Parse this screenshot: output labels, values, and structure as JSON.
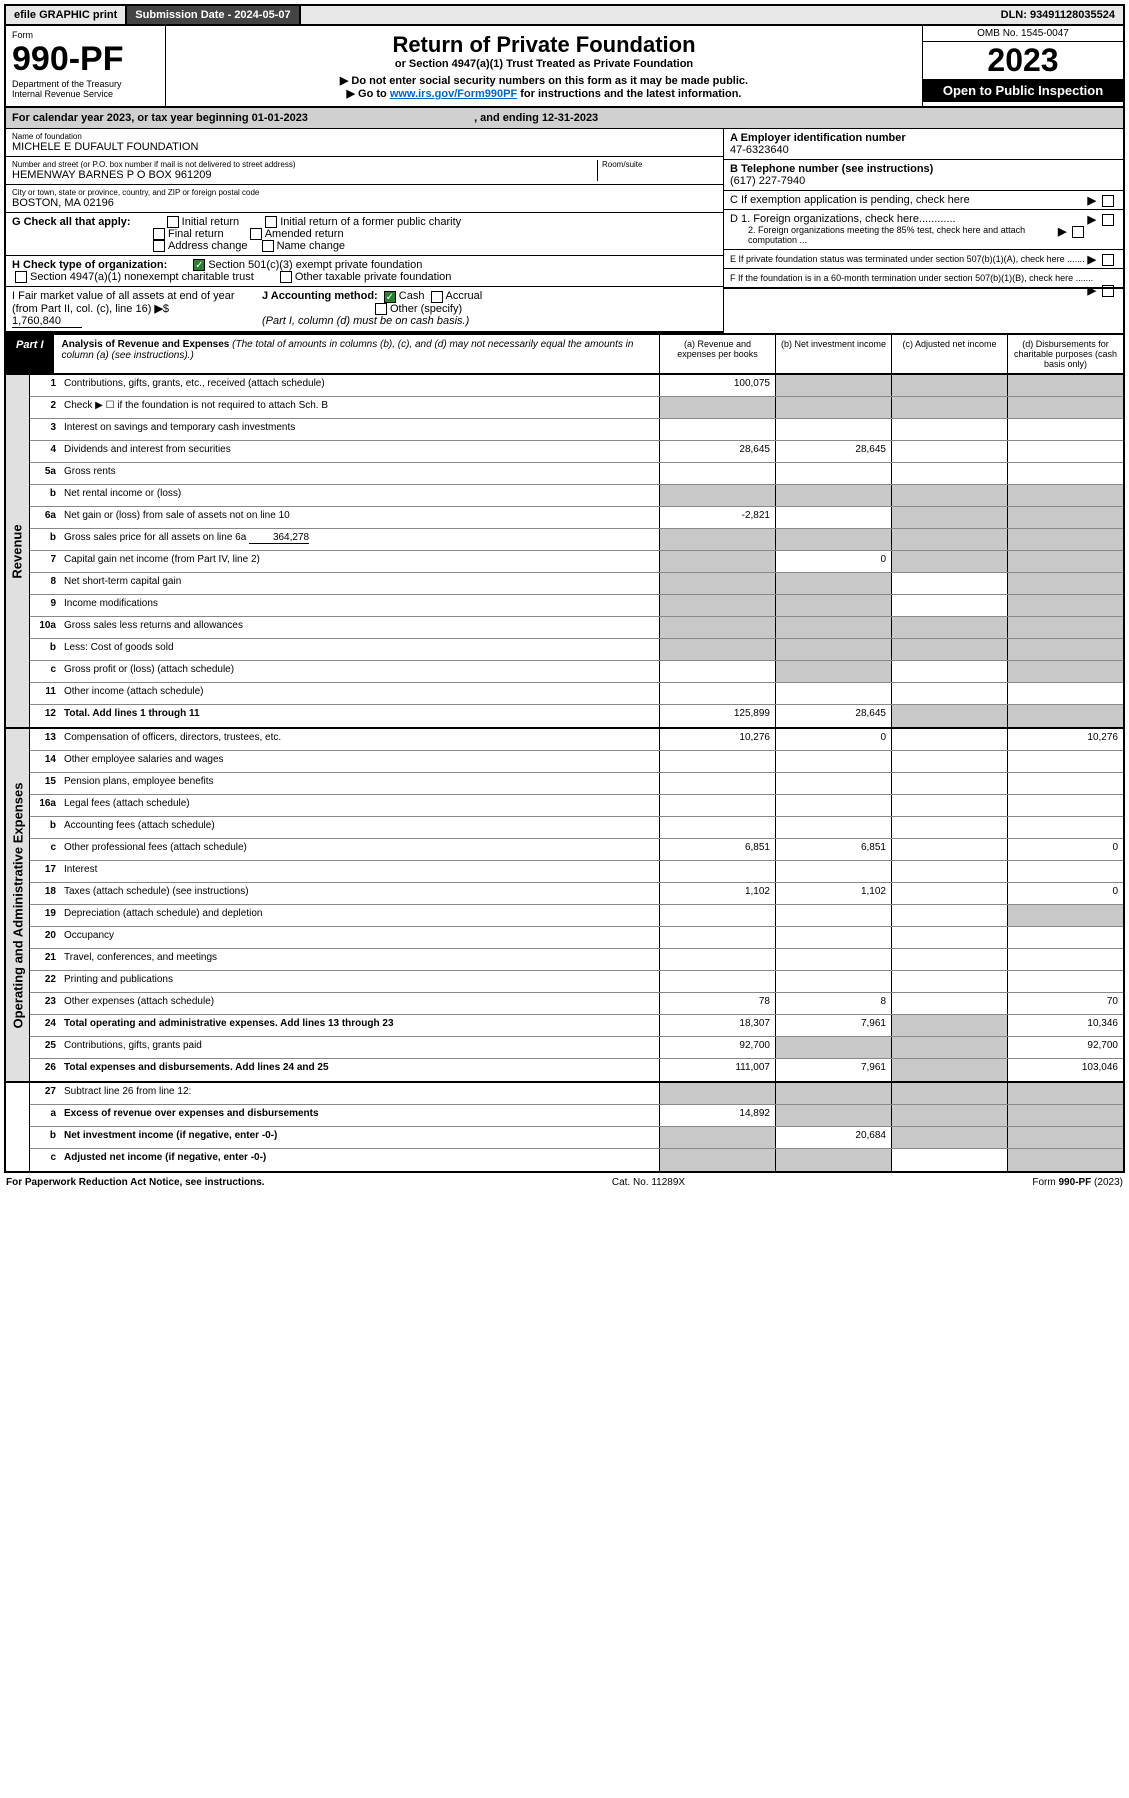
{
  "topbar": {
    "efile": "efile GRAPHIC print",
    "sub_label": "Submission Date - 2024-05-07",
    "dln": "DLN: 93491128035524"
  },
  "header": {
    "form_word": "Form",
    "form_no": "990-PF",
    "dept": "Department of the Treasury",
    "irs": "Internal Revenue Service",
    "title": "Return of Private Foundation",
    "subtitle": "or Section 4947(a)(1) Trust Treated as Private Foundation",
    "warn1": "▶ Do not enter social security numbers on this form as it may be made public.",
    "warn2_pre": "▶ Go to ",
    "warn2_link": "www.irs.gov/Form990PF",
    "warn2_post": " for instructions and the latest information.",
    "omb": "OMB No. 1545-0047",
    "year": "2023",
    "open": "Open to Public Inspection"
  },
  "calyear": {
    "pre": "For calendar year 2023, or tax year beginning ",
    "begin": "01-01-2023",
    "mid": " , and ending ",
    "end": "12-31-2023"
  },
  "info": {
    "name_label": "Name of foundation",
    "name": "MICHELE E DUFAULT FOUNDATION",
    "addr_label": "Number and street (or P.O. box number if mail is not delivered to street address)",
    "addr": "HEMENWAY BARNES P O BOX 961209",
    "room_label": "Room/suite",
    "city_label": "City or town, state or province, country, and ZIP or foreign postal code",
    "city": "BOSTON, MA  02196",
    "a_label": "A Employer identification number",
    "a_val": "47-6323640",
    "b_label": "B Telephone number (see instructions)",
    "b_val": "(617) 227-7940",
    "c_label": "C If exemption application is pending, check here",
    "g_label": "G Check all that apply:",
    "g_opts": [
      "Initial return",
      "Initial return of a former public charity",
      "Final return",
      "Amended return",
      "Address change",
      "Name change"
    ],
    "d1": "D 1. Foreign organizations, check here............",
    "d2": "2. Foreign organizations meeting the 85% test, check here and attach computation ...",
    "h_label": "H Check type of organization:",
    "h1": "Section 501(c)(3) exempt private foundation",
    "h2": "Section 4947(a)(1) nonexempt charitable trust",
    "h3": "Other taxable private foundation",
    "e_label": "E  If private foundation status was terminated under section 507(b)(1)(A), check here .......",
    "i_label": "I Fair market value of all assets at end of year (from Part II, col. (c), line 16)",
    "i_val": "1,760,840",
    "j_label": "J Accounting method:",
    "j_cash": "Cash",
    "j_accrual": "Accrual",
    "j_other": "Other (specify)",
    "j_note": "(Part I, column (d) must be on cash basis.)",
    "f_label": "F  If the foundation is in a 60-month termination under section 507(b)(1)(B), check here ......."
  },
  "part1": {
    "tag": "Part I",
    "title": "Analysis of Revenue and Expenses",
    "title_note": " (The total of amounts in columns (b), (c), and (d) may not necessarily equal the amounts in column (a) (see instructions).)",
    "col_a": "(a) Revenue and expenses per books",
    "col_b": "(b) Net investment income",
    "col_c": "(c) Adjusted net income",
    "col_d": "(d) Disbursements for charitable purposes (cash basis only)"
  },
  "sides": {
    "rev": "Revenue",
    "exp": "Operating and Administrative Expenses"
  },
  "rows": {
    "r1": {
      "ln": "1",
      "desc": "Contributions, gifts, grants, etc., received (attach schedule)",
      "a": "100,075"
    },
    "r2": {
      "ln": "2",
      "desc": "Check ▶ ☐ if the foundation is not required to attach Sch. B"
    },
    "r3": {
      "ln": "3",
      "desc": "Interest on savings and temporary cash investments"
    },
    "r4": {
      "ln": "4",
      "desc": "Dividends and interest from securities",
      "a": "28,645",
      "b": "28,645"
    },
    "r5a": {
      "ln": "5a",
      "desc": "Gross rents"
    },
    "r5b": {
      "ln": "b",
      "desc": "Net rental income or (loss)"
    },
    "r6a": {
      "ln": "6a",
      "desc": "Net gain or (loss) from sale of assets not on line 10",
      "a": "-2,821"
    },
    "r6b": {
      "ln": "b",
      "desc": "Gross sales price for all assets on line 6a",
      "inline": "364,278"
    },
    "r7": {
      "ln": "7",
      "desc": "Capital gain net income (from Part IV, line 2)",
      "b": "0"
    },
    "r8": {
      "ln": "8",
      "desc": "Net short-term capital gain"
    },
    "r9": {
      "ln": "9",
      "desc": "Income modifications"
    },
    "r10a": {
      "ln": "10a",
      "desc": "Gross sales less returns and allowances"
    },
    "r10b": {
      "ln": "b",
      "desc": "Less: Cost of goods sold"
    },
    "r10c": {
      "ln": "c",
      "desc": "Gross profit or (loss) (attach schedule)"
    },
    "r11": {
      "ln": "11",
      "desc": "Other income (attach schedule)"
    },
    "r12": {
      "ln": "12",
      "desc": "Total. Add lines 1 through 11",
      "bold": true,
      "a": "125,899",
      "b": "28,645"
    },
    "r13": {
      "ln": "13",
      "desc": "Compensation of officers, directors, trustees, etc.",
      "a": "10,276",
      "b": "0",
      "d": "10,276"
    },
    "r14": {
      "ln": "14",
      "desc": "Other employee salaries and wages"
    },
    "r15": {
      "ln": "15",
      "desc": "Pension plans, employee benefits"
    },
    "r16a": {
      "ln": "16a",
      "desc": "Legal fees (attach schedule)"
    },
    "r16b": {
      "ln": "b",
      "desc": "Accounting fees (attach schedule)"
    },
    "r16c": {
      "ln": "c",
      "desc": "Other professional fees (attach schedule)",
      "a": "6,851",
      "b": "6,851",
      "d": "0"
    },
    "r17": {
      "ln": "17",
      "desc": "Interest"
    },
    "r18": {
      "ln": "18",
      "desc": "Taxes (attach schedule) (see instructions)",
      "a": "1,102",
      "b": "1,102",
      "d": "0"
    },
    "r19": {
      "ln": "19",
      "desc": "Depreciation (attach schedule) and depletion"
    },
    "r20": {
      "ln": "20",
      "desc": "Occupancy"
    },
    "r21": {
      "ln": "21",
      "desc": "Travel, conferences, and meetings"
    },
    "r22": {
      "ln": "22",
      "desc": "Printing and publications"
    },
    "r23": {
      "ln": "23",
      "desc": "Other expenses (attach schedule)",
      "a": "78",
      "b": "8",
      "d": "70"
    },
    "r24": {
      "ln": "24",
      "desc": "Total operating and administrative expenses. Add lines 13 through 23",
      "bold": true,
      "a": "18,307",
      "b": "7,961",
      "d": "10,346"
    },
    "r25": {
      "ln": "25",
      "desc": "Contributions, gifts, grants paid",
      "a": "92,700",
      "d": "92,700"
    },
    "r26": {
      "ln": "26",
      "desc": "Total expenses and disbursements. Add lines 24 and 25",
      "bold": true,
      "a": "111,007",
      "b": "7,961",
      "d": "103,046"
    },
    "r27": {
      "ln": "27",
      "desc": "Subtract line 26 from line 12:"
    },
    "r27a": {
      "ln": "a",
      "desc": "Excess of revenue over expenses and disbursements",
      "bold": true,
      "a": "14,892"
    },
    "r27b": {
      "ln": "b",
      "desc": "Net investment income (if negative, enter -0-)",
      "bold": true,
      "b": "20,684"
    },
    "r27c": {
      "ln": "c",
      "desc": "Adjusted net income (if negative, enter -0-)",
      "bold": true
    }
  },
  "footer": {
    "left": "For Paperwork Reduction Act Notice, see instructions.",
    "mid": "Cat. No. 11289X",
    "right": "Form 990-PF (2023)"
  },
  "colors": {
    "shade": "#c8c8c8",
    "topbar_bg": "#e8e8e8",
    "dark_bg": "#444444"
  }
}
